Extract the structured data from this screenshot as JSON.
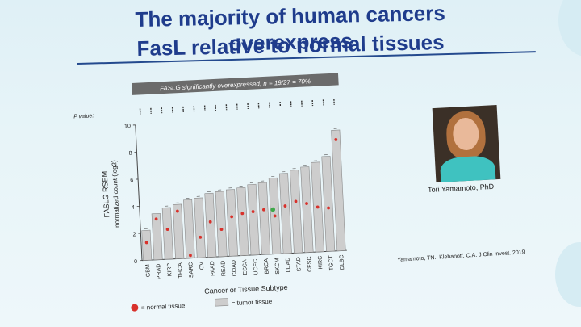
{
  "title_line1": "The majority of human cancers overexpress",
  "title_line2": "FasL relative to normal tissues",
  "chart_data": {
    "type": "bar",
    "banner": "FASLG significantly overexpressed, n = 19/27 = 70%",
    "pvalue_label": "P value:",
    "categories": [
      "GBM",
      "PRAD",
      "KIRP",
      "THCA",
      "SARC",
      "OV",
      "PAAD",
      "READ",
      "COAD",
      "ESCA",
      "UCEC",
      "BRCA",
      "SKCM",
      "LUAD",
      "STAD",
      "CESC",
      "KIRC",
      "TGCT",
      "DLBC"
    ],
    "series": [
      {
        "name": "= tumor tissue",
        "values": [
          2.2,
          3.4,
          3.8,
          4.0,
          4.3,
          4.4,
          4.7,
          4.8,
          4.9,
          5.0,
          5.2,
          5.3,
          5.6,
          5.9,
          6.1,
          6.3,
          6.6,
          7.0,
          8.9
        ]
      },
      {
        "name": "= normal tissue",
        "values": [
          1.3,
          3.0,
          2.2,
          3.5,
          0.2,
          1.5,
          2.6,
          2.0,
          2.9,
          3.1,
          3.2,
          3.3,
          2.8,
          3.5,
          3.8,
          3.6,
          3.3,
          3.2,
          8.2
        ]
      }
    ],
    "highlight_category": "SKCM",
    "yticks": [
      0,
      2,
      4,
      6,
      8,
      10
    ],
    "ylim": [
      0,
      10
    ],
    "ylabel_line1": "FASLG RSEM",
    "ylabel_line2": "normalized count (log2)",
    "xlabel": "Cancer or Tissue Subtype",
    "colors": {
      "bar": "#cdcdcd",
      "bar_edge": "#8a8a8a",
      "normal_dot": "#d8312b",
      "banner": "#6b6b6b",
      "highlight": "#3ea94a"
    }
  },
  "portrait_caption": "Tori Yamamoto, PhD",
  "citation": "Yamamoto, TN., Klebanoff, C.A. J Clin Invest. 2019"
}
